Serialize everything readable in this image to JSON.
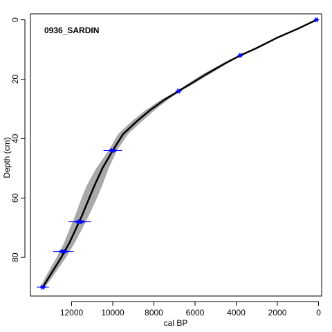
{
  "chart_data": {
    "type": "line",
    "title": "0936_SARDIN",
    "xlabel": "cal BP",
    "ylabel": "Depth (cm)",
    "xlim": [
      14000,
      -150
    ],
    "ylim": [
      -2,
      93
    ],
    "x_reversed": true,
    "y_reversed": true,
    "xticks": [
      12000,
      10000,
      8000,
      6000,
      4000,
      2000,
      0
    ],
    "yticks": [
      0,
      20,
      40,
      60,
      80
    ],
    "grid": false,
    "legend": "none",
    "series": [
      {
        "role": "age-depth-model",
        "x": [
          100,
          1000,
          2000,
          3000,
          3800,
          4500,
          5500,
          6200,
          6800,
          7500,
          8200,
          8800,
          9500,
          10000,
          10500,
          10900,
          11200,
          11500,
          11800,
          12100,
          12500,
          13000,
          13400
        ],
        "y": [
          0,
          3,
          6,
          9.5,
          12,
          14.5,
          18.5,
          21.5,
          24,
          27,
          30.5,
          34,
          38.5,
          44,
          50,
          56,
          61,
          66,
          70.5,
          75,
          80,
          85.5,
          90
        ],
        "band_halfwidth": [
          40,
          60,
          80,
          100,
          60,
          120,
          170,
          150,
          80,
          170,
          220,
          250,
          240,
          200,
          300,
          380,
          370,
          330,
          300,
          260,
          230,
          180,
          120
        ],
        "line_color": "#000000",
        "band_color": "#9a9a9a"
      }
    ],
    "dates": [
      {
        "depth": 0,
        "age": 100,
        "error": 130
      },
      {
        "depth": 12,
        "age": 3800,
        "error": 140
      },
      {
        "depth": 24,
        "age": 6800,
        "error": 160
      },
      {
        "depth": 44,
        "age": 10000,
        "error": 450
      },
      {
        "depth": 68,
        "age": 11600,
        "error": 550
      },
      {
        "depth": 78,
        "age": 12400,
        "error": 500
      },
      {
        "depth": 90,
        "age": 13400,
        "error": 300
      }
    ],
    "date_color": "#0000ff"
  }
}
